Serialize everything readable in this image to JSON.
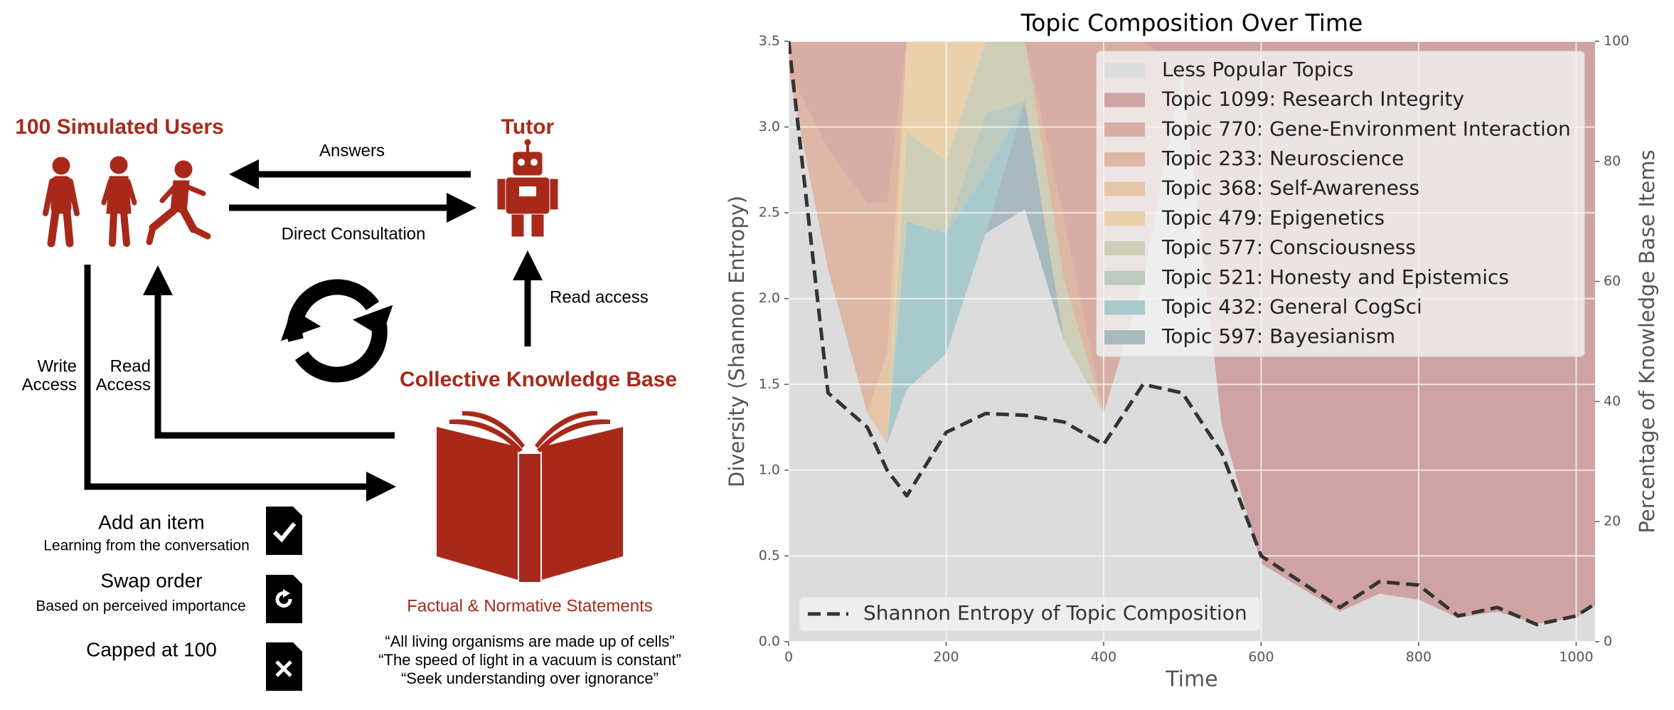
{
  "diagram": {
    "users_title": "100 Simulated Users",
    "tutor_title": "Tutor",
    "answers": "Answers",
    "direct_consultation": "Direct Consultation",
    "read_access": "Read access",
    "write_access": [
      "Write",
      "Access"
    ],
    "user_read_access": [
      "Read",
      "Access"
    ],
    "kb_title": "Collective Knowledge Base",
    "kb_subtitle": "Factual & Normative Statements",
    "quotes": [
      "“All living organisms are made up of cells”",
      "“The speed of light in a vacuum is constant”",
      "“Seek understanding over ignorance”"
    ],
    "actions": [
      {
        "title": "Add an item",
        "detail": "Learning from the conversation"
      },
      {
        "title": "Swap order",
        "detail": "Based on perceived importance"
      },
      {
        "title": "Capped at 100"
      }
    ]
  },
  "chart_data": {
    "type": "area",
    "title": "Topic Composition Over Time",
    "xlabel": "Time",
    "ylabel": "Diversity (Shannon Entropy)",
    "y2label": "Percentage of Knowledge Base Items",
    "x": [
      0,
      50,
      100,
      125,
      150,
      200,
      250,
      300,
      350,
      400,
      450,
      500,
      550,
      600,
      650,
      700,
      750,
      800,
      850,
      900,
      950,
      1000,
      1024
    ],
    "series": [
      {
        "name": "Less Popular Topics",
        "color": "#dcdcdc",
        "axis": "y2",
        "values": [
          95,
          62,
          38,
          33,
          42,
          48,
          68,
          72,
          50,
          38,
          60,
          95,
          36,
          13,
          9,
          5,
          8,
          7,
          4,
          5,
          3,
          4,
          6
        ]
      },
      {
        "name": "Topic 1099: Research Integrity",
        "color": "#cfa3a3",
        "axis": "y2",
        "values": [
          0,
          0,
          0,
          0,
          0,
          0,
          0,
          0,
          0,
          0,
          0,
          5,
          64,
          87,
          91,
          95,
          92,
          93,
          96,
          95,
          97,
          96,
          94
        ]
      },
      {
        "name": "Topic 770: Gene-Environment Interaction",
        "color": "#d8ada3",
        "axis": "y2",
        "values": [
          5,
          18,
          27,
          27,
          0,
          0,
          0,
          0,
          30,
          62,
          40,
          0,
          0,
          0,
          0,
          0,
          0,
          0,
          0,
          0,
          0,
          0,
          0
        ]
      },
      {
        "name": "Topic 233: Neuroscience",
        "color": "#dfb7a5",
        "axis": "y2",
        "values": [
          0,
          20,
          35,
          25,
          0,
          0,
          0,
          0,
          10,
          0,
          0,
          0,
          0,
          0,
          0,
          0,
          0,
          0,
          0,
          0,
          0,
          0,
          0
        ]
      },
      {
        "name": "Topic 368: Self-Awareness",
        "color": "#e6c6a8",
        "axis": "y2",
        "values": [
          0,
          0,
          0,
          15,
          0,
          0,
          0,
          0,
          0,
          0,
          0,
          0,
          0,
          0,
          0,
          0,
          0,
          0,
          0,
          0,
          0,
          0,
          0
        ]
      },
      {
        "name": "Topic 479: Epigenetics",
        "color": "#ebd1ab",
        "axis": "y2",
        "values": [
          0,
          0,
          0,
          0,
          15,
          20,
          0,
          0,
          0,
          0,
          0,
          0,
          0,
          0,
          0,
          0,
          0,
          0,
          0,
          0,
          0,
          0,
          0
        ]
      },
      {
        "name": "Topic 577: Consciousness",
        "color": "#cfcfb8",
        "axis": "y2",
        "values": [
          0,
          0,
          0,
          0,
          15,
          12,
          12,
          10,
          10,
          0,
          0,
          0,
          0,
          0,
          0,
          0,
          0,
          0,
          0,
          0,
          0,
          0,
          0
        ]
      },
      {
        "name": "Topic 521: Honesty and Epistemics",
        "color": "#bccabf",
        "axis": "y2",
        "values": [
          0,
          0,
          0,
          0,
          0,
          0,
          10,
          0,
          0,
          0,
          0,
          0,
          0,
          0,
          0,
          0,
          0,
          0,
          0,
          0,
          0,
          0,
          0
        ]
      },
      {
        "name": "Topic 432: General CogSci",
        "color": "#a9cacd",
        "axis": "y2",
        "values": [
          0,
          0,
          0,
          0,
          28,
          20,
          10,
          0,
          0,
          0,
          0,
          0,
          0,
          0,
          0,
          0,
          0,
          0,
          0,
          0,
          0,
          0,
          0
        ]
      },
      {
        "name": "Topic 597: Bayesianism",
        "color": "#a8b9bf",
        "axis": "y2",
        "values": [
          0,
          0,
          0,
          0,
          0,
          0,
          0,
          18,
          0,
          0,
          0,
          0,
          0,
          0,
          0,
          0,
          0,
          0,
          0,
          0,
          0,
          0,
          0
        ]
      },
      {
        "name": "Shannon Entropy of Topic Composition",
        "color": "#333333",
        "axis": "y",
        "linestyle": "dashed",
        "values": [
          3.5,
          1.45,
          1.25,
          1.0,
          0.85,
          1.22,
          1.33,
          1.32,
          1.28,
          1.15,
          1.5,
          1.45,
          1.1,
          0.5,
          0.35,
          0.2,
          0.35,
          0.33,
          0.15,
          0.2,
          0.1,
          0.15,
          0.22
        ]
      }
    ],
    "xlim": [
      0,
      1024
    ],
    "xticks": [
      0,
      200,
      400,
      600,
      800,
      1000
    ],
    "ylim": [
      0,
      3.5
    ],
    "yticks": [
      {
        "value": 0,
        "label": "0.0"
      },
      0.5,
      {
        "value": 1,
        "label": "1.0"
      },
      1.5,
      {
        "value": 2,
        "label": "2.0"
      },
      2.5,
      {
        "value": 3,
        "label": "3.0"
      },
      3.5
    ],
    "y2lim": [
      0,
      100
    ],
    "y2ticks": [
      0,
      20,
      40,
      60,
      80,
      100
    ],
    "grid": true,
    "legend": "upper right",
    "line_legend": "lower left"
  }
}
